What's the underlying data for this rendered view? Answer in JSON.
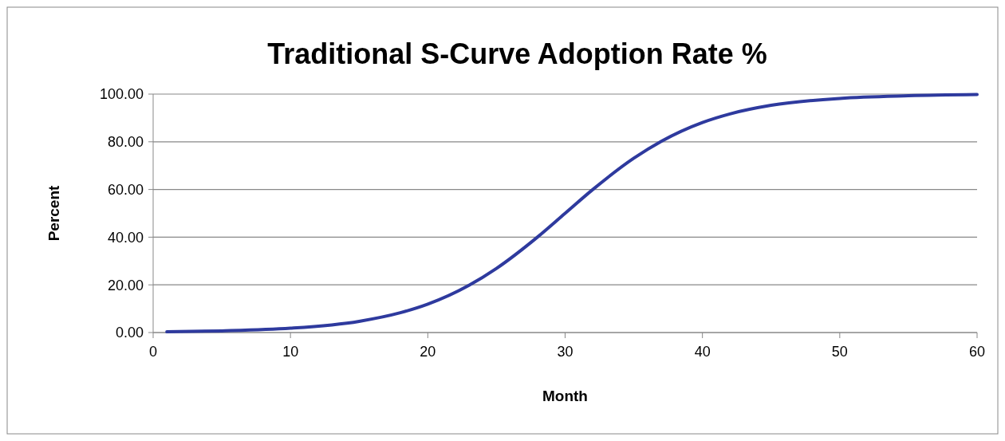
{
  "chart_data": {
    "type": "line",
    "title": "Traditional S-Curve Adoption Rate %",
    "xlabel": "Month",
    "ylabel": "Percent",
    "x": [
      1,
      5,
      10,
      15,
      18,
      20,
      23,
      25,
      28,
      30,
      32,
      35,
      37,
      40,
      42,
      45,
      50,
      55,
      60
    ],
    "series": [
      {
        "color": "#2e3a9e",
        "values": [
          0.3,
          0.7,
          1.8,
          4.7,
          8.3,
          11.9,
          19.8,
          26.9,
          40.1,
          50,
          59.9,
          73.1,
          80.2,
          88.1,
          91.7,
          95.3,
          98.2,
          99.3,
          99.8
        ]
      }
    ],
    "xlim": [
      0,
      60
    ],
    "xticks": [
      0,
      10,
      20,
      30,
      40,
      50,
      60
    ],
    "ylim": [
      0,
      100
    ],
    "yticks": [
      {
        "value": 0,
        "label": "0.00"
      },
      {
        "value": 20,
        "label": "20.00"
      },
      {
        "value": 40,
        "label": "40.00"
      },
      {
        "value": 60,
        "label": "60.00"
      },
      {
        "value": 80,
        "label": "80.00"
      },
      {
        "value": 100,
        "label": "100.00"
      }
    ],
    "grid": "y",
    "marker": "none",
    "line_style": "solid"
  }
}
